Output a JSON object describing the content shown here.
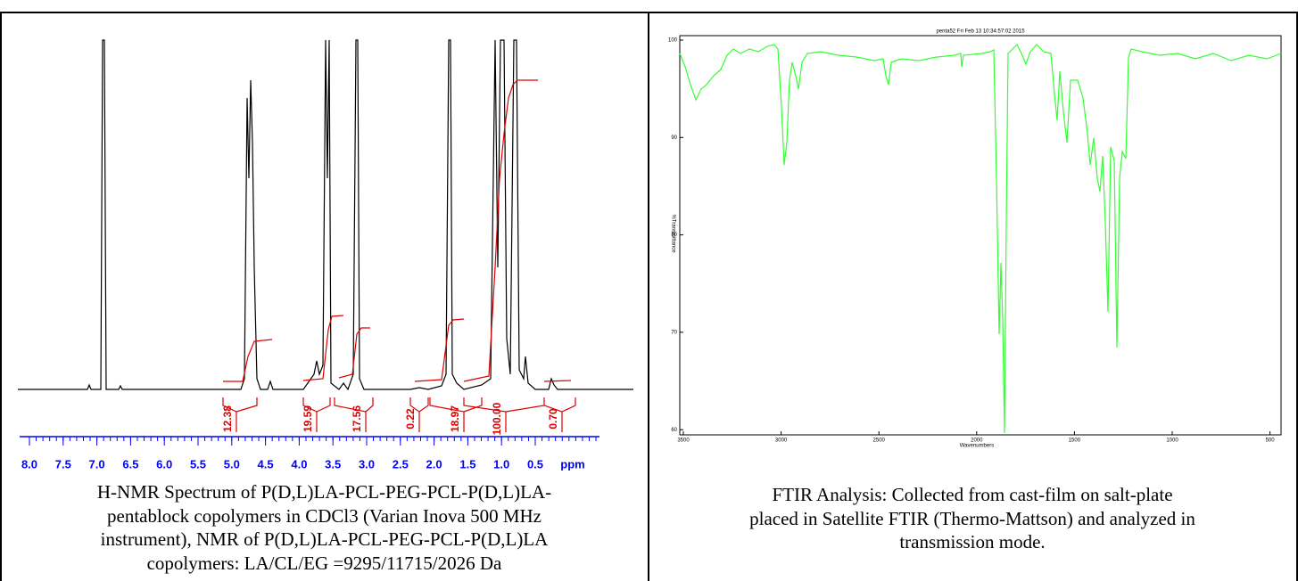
{
  "nmr_figure": {
    "axis_ticks": [
      "8.0",
      "7.5",
      "7.0",
      "6.5",
      "6.0",
      "5.5",
      "5.0",
      "4.5",
      "4.0",
      "3.5",
      "3.0",
      "2.5",
      "2.0",
      "1.5",
      "1.0",
      "0.5"
    ],
    "axis_unit": "ppm",
    "integrals": [
      "12.38",
      "19.59",
      "17.56",
      "0.22",
      "18.97",
      "100.00",
      "0.70"
    ],
    "caption": [
      "H-NMR Spectrum of P(D,L)LA-PCL-PEG-PCL-P(D,L)LA-",
      "pentablock copolymers in CDCl3 (Varian Inova 500 MHz",
      "instrument), NMR of P(D,L)LA-PCL-PEG-PCL-P(D,L)LA",
      "copolymers: LA/CL/EG =9295/11715/2026 Da"
    ]
  },
  "ftir_figure": {
    "plot_title": "penta52  Fri Feb 13 10:34:57:02 2015",
    "y_ticks": [
      "100",
      "90",
      "80",
      "70",
      "60"
    ],
    "y_label": "%Transmittance",
    "x_ticks": [
      "3500",
      "3000",
      "2500",
      "2000",
      "1500",
      "1000",
      "500"
    ],
    "x_label": "Wavenumbers",
    "caption": [
      "FTIR Analysis: Collected from cast-film on salt-plate",
      "placed in Satellite FTIR (Thermo-Mattson) and analyzed in",
      "transmission mode."
    ]
  }
}
